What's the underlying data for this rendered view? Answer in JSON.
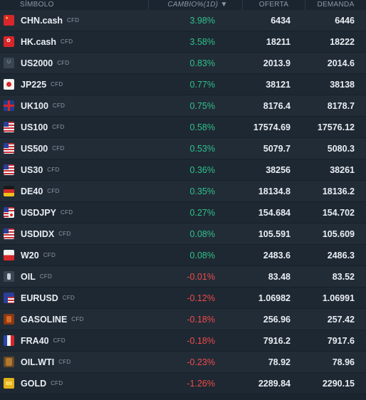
{
  "header": {
    "symbol": "SÍMBOLO",
    "change": "CAMBIO%(1D) ▼",
    "bid": "OFERTA",
    "ask": "DEMANDA"
  },
  "rows": [
    {
      "symbol": "CHN.cash",
      "type": "CFD",
      "change": "3.98%",
      "bid": "6434",
      "ask": "6446",
      "dir": "pos",
      "flag": "cn"
    },
    {
      "symbol": "HK.cash",
      "type": "CFD",
      "change": "3.58%",
      "bid": "18211",
      "ask": "18222",
      "dir": "pos",
      "flag": "hk"
    },
    {
      "symbol": "US2000",
      "type": "CFD",
      "change": "0.83%",
      "bid": "2013.9",
      "ask": "2014.6",
      "dir": "pos",
      "flag": "u"
    },
    {
      "symbol": "JP225",
      "type": "CFD",
      "change": "0.77%",
      "bid": "38121",
      "ask": "38138",
      "dir": "pos",
      "flag": "jp"
    },
    {
      "symbol": "UK100",
      "type": "CFD",
      "change": "0.75%",
      "bid": "8176.4",
      "ask": "8178.7",
      "dir": "pos",
      "flag": "uk"
    },
    {
      "symbol": "US100",
      "type": "CFD",
      "change": "0.58%",
      "bid": "17574.69",
      "ask": "17576.12",
      "dir": "pos",
      "flag": "us"
    },
    {
      "symbol": "US500",
      "type": "CFD",
      "change": "0.53%",
      "bid": "5079.7",
      "ask": "5080.3",
      "dir": "pos",
      "flag": "us"
    },
    {
      "symbol": "US30",
      "type": "CFD",
      "change": "0.36%",
      "bid": "38256",
      "ask": "38261",
      "dir": "pos",
      "flag": "us"
    },
    {
      "symbol": "DE40",
      "type": "CFD",
      "change": "0.35%",
      "bid": "18134.8",
      "ask": "18136.2",
      "dir": "pos",
      "flag": "de"
    },
    {
      "symbol": "USDJPY",
      "type": "CFD",
      "change": "0.27%",
      "bid": "154.684",
      "ask": "154.702",
      "dir": "pos",
      "flag": "usjp"
    },
    {
      "symbol": "USDIDX",
      "type": "CFD",
      "change": "0.08%",
      "bid": "105.591",
      "ask": "105.609",
      "dir": "pos",
      "flag": "us"
    },
    {
      "symbol": "W20",
      "type": "CFD",
      "change": "0.08%",
      "bid": "2483.6",
      "ask": "2486.3",
      "dir": "pos",
      "flag": "pl"
    },
    {
      "symbol": "OIL",
      "type": "CFD",
      "change": "-0.01%",
      "bid": "83.48",
      "ask": "83.52",
      "dir": "neg",
      "flag": "oil"
    },
    {
      "symbol": "EURUSD",
      "type": "CFD",
      "change": "-0.12%",
      "bid": "1.06982",
      "ask": "1.06991",
      "dir": "neg",
      "flag": "euus"
    },
    {
      "symbol": "GASOLINE",
      "type": "CFD",
      "change": "-0.18%",
      "bid": "256.96",
      "ask": "257.42",
      "dir": "neg",
      "flag": "gas"
    },
    {
      "symbol": "FRA40",
      "type": "CFD",
      "change": "-0.18%",
      "bid": "7916.2",
      "ask": "7917.6",
      "dir": "neg",
      "flag": "fr"
    },
    {
      "symbol": "OIL.WTI",
      "type": "CFD",
      "change": "-0.23%",
      "bid": "78.92",
      "ask": "78.96",
      "dir": "neg",
      "flag": "wti"
    },
    {
      "symbol": "GOLD",
      "type": "CFD",
      "change": "-1.26%",
      "bid": "2289.84",
      "ask": "2290.15",
      "dir": "neg",
      "flag": "gold"
    }
  ],
  "colors": {
    "positive": "#2fc28a",
    "negative": "#f04a4a",
    "background": "#1b2530"
  }
}
